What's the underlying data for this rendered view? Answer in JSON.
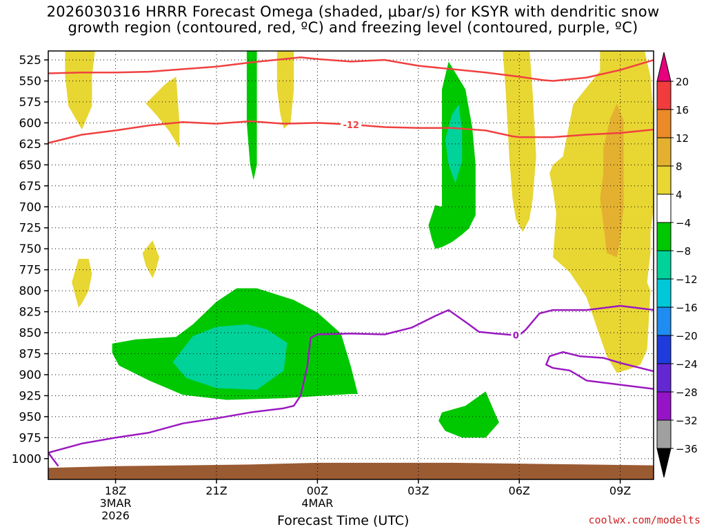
{
  "title": {
    "line1": "2026030316 HRRR Forecast Omega (shaded, μbar/s) for KSYR with dendritic snow",
    "line2": "growth region (contoured, red, ºC) and freezing level (contoured, purple, ºC)"
  },
  "credit": "coolwx.com/modelts",
  "chart_data": {
    "type": "time-height cross section",
    "xlabel": "Forecast Time (UTC)",
    "ylabel": "",
    "y_scale": "pressure (hPa), decreasing upward",
    "ylim": [
      1012,
      510
    ],
    "xlim": [
      16,
      34
    ],
    "x_units": "hours since 2026-03-03 00Z",
    "x_ticks": [
      {
        "x": 18,
        "lines": [
          "18Z",
          "3MAR",
          "2026"
        ]
      },
      {
        "x": 21,
        "lines": [
          "21Z"
        ]
      },
      {
        "x": 24,
        "lines": [
          "00Z",
          "4MAR"
        ]
      },
      {
        "x": 27,
        "lines": [
          "03Z"
        ]
      },
      {
        "x": 30,
        "lines": [
          "06Z"
        ]
      },
      {
        "x": 33,
        "lines": [
          "09Z"
        ]
      }
    ],
    "y_ticks": [
      525,
      550,
      575,
      600,
      625,
      650,
      675,
      700,
      725,
      750,
      775,
      800,
      825,
      850,
      875,
      900,
      925,
      950,
      975,
      1000
    ],
    "grid": true,
    "colorbar": {
      "label_values": [
        20,
        16,
        12,
        8,
        4,
        -4,
        -8,
        -12,
        -16,
        -20,
        -24,
        -28,
        -32,
        -36
      ],
      "bins": [
        {
          "from": 20,
          "to": 16,
          "color": "#f03c3c"
        },
        {
          "from": 16,
          "to": 12,
          "color": "#ec8a28"
        },
        {
          "from": 12,
          "to": 8,
          "color": "#e4b030"
        },
        {
          "from": 8,
          "to": 4,
          "color": "#e8d633"
        },
        {
          "from": 4,
          "to": -4,
          "color": "#ffffff"
        },
        {
          "from": -4,
          "to": -8,
          "color": "#00c800"
        },
        {
          "from": -8,
          "to": -12,
          "color": "#00d29a"
        },
        {
          "from": -12,
          "to": -16,
          "color": "#00c8d8"
        },
        {
          "from": -16,
          "to": -20,
          "color": "#1e8cf0"
        },
        {
          "from": -20,
          "to": -24,
          "color": "#1e3cdc"
        },
        {
          "from": -24,
          "to": -28,
          "color": "#6428d2"
        },
        {
          "from": -28,
          "to": -32,
          "color": "#9614c8"
        },
        {
          "from": -32,
          "to": -36,
          "color": "#a0a0a0"
        }
      ],
      "over_color": "#e6007e",
      "under_color": "#000000"
    },
    "shaded_regions": [
      {
        "name": "upward motion -4 to -8",
        "color": "#00c800",
        "polygon": [
          [
            17.9,
            863
          ],
          [
            18.6,
            858
          ],
          [
            19.8,
            855
          ],
          [
            20.3,
            840
          ],
          [
            21.0,
            813
          ],
          [
            21.6,
            797
          ],
          [
            22.2,
            797
          ],
          [
            23.3,
            811
          ],
          [
            24.0,
            826
          ],
          [
            24.7,
            851
          ],
          [
            25.0,
            891
          ],
          [
            25.2,
            923
          ],
          [
            25.0,
            923
          ],
          [
            23.0,
            928
          ],
          [
            21.3,
            930
          ],
          [
            20.0,
            924
          ],
          [
            19.0,
            907
          ],
          [
            18.1,
            889
          ],
          [
            17.9,
            874
          ]
        ]
      },
      {
        "name": "upward motion -8 to -12",
        "color": "#00d29a",
        "polygon": [
          [
            19.7,
            885
          ],
          [
            20.3,
            854
          ],
          [
            21.0,
            843
          ],
          [
            21.9,
            840
          ],
          [
            22.5,
            846
          ],
          [
            23.1,
            862
          ],
          [
            23.0,
            895
          ],
          [
            22.2,
            918
          ],
          [
            21.0,
            916
          ],
          [
            20.1,
            904
          ]
        ]
      },
      {
        "name": "upward motion -4 to -8",
        "color": "#00c800",
        "polygon": [
          [
            21.9,
            510
          ],
          [
            22.2,
            510
          ],
          [
            22.2,
            650
          ],
          [
            22.1,
            668
          ],
          [
            22.0,
            650
          ],
          [
            21.9,
            600
          ]
        ]
      },
      {
        "name": "upward motion -4 to -8",
        "color": "#00c800",
        "polygon": [
          [
            27.7,
            560
          ],
          [
            27.9,
            527
          ],
          [
            28.4,
            560
          ],
          [
            28.6,
            605
          ],
          [
            28.7,
            650
          ],
          [
            28.7,
            685
          ],
          [
            28.7,
            710
          ],
          [
            28.5,
            726
          ],
          [
            28.3,
            733
          ],
          [
            28.0,
            742
          ],
          [
            27.7,
            748
          ],
          [
            27.5,
            750
          ],
          [
            27.4,
            738
          ],
          [
            27.3,
            722
          ],
          [
            27.5,
            698
          ],
          [
            27.7,
            700
          ],
          [
            27.7,
            660
          ],
          [
            27.7,
            615
          ]
        ]
      },
      {
        "name": "upward motion -8 to -12",
        "color": "#00d29a",
        "polygon": [
          [
            27.8,
            620
          ],
          [
            28.0,
            590
          ],
          [
            28.2,
            578
          ],
          [
            28.3,
            610
          ],
          [
            28.3,
            645
          ],
          [
            28.1,
            672
          ],
          [
            27.9,
            650
          ]
        ]
      },
      {
        "name": "upward motion -4 to -8",
        "color": "#00c800",
        "polygon": [
          [
            27.7,
            945
          ],
          [
            28.4,
            937
          ],
          [
            29.0,
            920
          ],
          [
            29.3,
            948
          ],
          [
            29.4,
            957
          ],
          [
            29.0,
            975
          ],
          [
            28.3,
            975
          ],
          [
            27.8,
            967
          ],
          [
            27.6,
            955
          ]
        ]
      },
      {
        "name": "downward motion 4 to 8",
        "color": "#e8d633",
        "polygon": [
          [
            16.5,
            510
          ],
          [
            17.4,
            510
          ],
          [
            17.3,
            545
          ],
          [
            17.3,
            580
          ],
          [
            17.0,
            608
          ],
          [
            16.6,
            580
          ],
          [
            16.5,
            545
          ]
        ]
      },
      {
        "name": "downward motion 4 to 8",
        "color": "#e8d633",
        "polygon": [
          [
            18.9,
            577
          ],
          [
            19.5,
            553
          ],
          [
            19.8,
            545
          ],
          [
            19.9,
            600
          ],
          [
            19.9,
            630
          ],
          [
            19.6,
            610
          ],
          [
            19.2,
            590
          ]
        ]
      },
      {
        "name": "downward motion 4 to 8",
        "color": "#e8d633",
        "polygon": [
          [
            22.8,
            510
          ],
          [
            23.3,
            510
          ],
          [
            23.3,
            560
          ],
          [
            23.2,
            600
          ],
          [
            23.0,
            607
          ],
          [
            22.9,
            590
          ],
          [
            22.8,
            560
          ]
        ]
      },
      {
        "name": "downward motion 4 to 8",
        "color": "#e8d633",
        "polygon": [
          [
            16.7,
            790
          ],
          [
            16.9,
            762
          ],
          [
            17.2,
            762
          ],
          [
            17.3,
            780
          ],
          [
            17.2,
            800
          ],
          [
            17.0,
            815
          ],
          [
            16.9,
            820
          ],
          [
            16.8,
            805
          ]
        ]
      },
      {
        "name": "downward motion 4 to 8",
        "color": "#e8d633",
        "polygon": [
          [
            18.8,
            755
          ],
          [
            19.1,
            740
          ],
          [
            19.3,
            760
          ],
          [
            19.2,
            775
          ],
          [
            19.1,
            785
          ],
          [
            18.9,
            770
          ]
        ]
      },
      {
        "name": "downward motion 4 to 8",
        "color": "#e8d633",
        "polygon": [
          [
            29.5,
            510
          ],
          [
            30.3,
            510
          ],
          [
            30.4,
            565
          ],
          [
            30.5,
            640
          ],
          [
            30.4,
            690
          ],
          [
            30.3,
            715
          ],
          [
            30.1,
            730
          ],
          [
            29.9,
            715
          ],
          [
            29.8,
            690
          ],
          [
            29.7,
            640
          ],
          [
            29.6,
            565
          ]
        ]
      },
      {
        "name": "downward motion 4 to 8",
        "color": "#e8d633",
        "polygon": [
          [
            31.3,
            640
          ],
          [
            31.6,
            578
          ],
          [
            32.4,
            538
          ],
          [
            32.4,
            510
          ],
          [
            33.7,
            510
          ],
          [
            33.9,
            545
          ],
          [
            34.0,
            600
          ],
          [
            34.0,
            700
          ],
          [
            33.9,
            730
          ],
          [
            33.9,
            755
          ],
          [
            33.8,
            790
          ],
          [
            33.9,
            800
          ],
          [
            33.8,
            870
          ],
          [
            33.6,
            888
          ],
          [
            33.3,
            893
          ],
          [
            32.9,
            898
          ],
          [
            32.6,
            878
          ],
          [
            32.0,
            808
          ],
          [
            31.5,
            778
          ],
          [
            31.0,
            760
          ],
          [
            31.1,
            708
          ],
          [
            31.0,
            680
          ],
          [
            30.9,
            660
          ],
          [
            31.0,
            650
          ]
        ]
      },
      {
        "name": "downward motion 8 to 12",
        "color": "#e4b030",
        "polygon": [
          [
            32.7,
            595
          ],
          [
            32.9,
            577
          ],
          [
            33.1,
            597
          ],
          [
            33.1,
            660
          ],
          [
            33.1,
            700
          ],
          [
            33.0,
            740
          ],
          [
            32.9,
            760
          ],
          [
            32.6,
            755
          ],
          [
            32.5,
            720
          ],
          [
            32.4,
            690
          ],
          [
            32.5,
            660
          ],
          [
            32.5,
            630
          ]
        ]
      }
    ],
    "contours": [
      {
        "name": "dendritic snow growth region upper bound",
        "label": "",
        "color": "#f04040",
        "points": [
          [
            16.0,
            541
          ],
          [
            17.0,
            540
          ],
          [
            18.0,
            540
          ],
          [
            19.0,
            539
          ],
          [
            20.0,
            536
          ],
          [
            21.0,
            533
          ],
          [
            22.0,
            528
          ],
          [
            23.0,
            524
          ],
          [
            23.5,
            522
          ],
          [
            24.0,
            524
          ],
          [
            25.0,
            527
          ],
          [
            26.0,
            525
          ],
          [
            27.0,
            532
          ],
          [
            28.0,
            536
          ],
          [
            29.0,
            540
          ],
          [
            30.0,
            545
          ],
          [
            30.7,
            549
          ],
          [
            31.0,
            550
          ],
          [
            32.0,
            546
          ],
          [
            33.0,
            537
          ],
          [
            34.0,
            525
          ]
        ]
      },
      {
        "name": "dendritic snow growth region lower bound",
        "label": "-12",
        "label_x": 25.0,
        "color": "#f04040",
        "points": [
          [
            16.0,
            624
          ],
          [
            17.0,
            614
          ],
          [
            18.0,
            609
          ],
          [
            19.0,
            603
          ],
          [
            20.0,
            599
          ],
          [
            21.0,
            601
          ],
          [
            22.0,
            598
          ],
          [
            23.0,
            601
          ],
          [
            24.0,
            600
          ],
          [
            25.0,
            602
          ],
          [
            26.0,
            605
          ],
          [
            27.0,
            606
          ],
          [
            28.0,
            606
          ],
          [
            29.0,
            609
          ],
          [
            29.8,
            616
          ],
          [
            30.0,
            617
          ],
          [
            31.0,
            617
          ],
          [
            32.0,
            614
          ],
          [
            33.0,
            612
          ],
          [
            34.0,
            608
          ]
        ]
      },
      {
        "name": "freezing level",
        "label": "0",
        "label_x": 29.9,
        "color": "#9b18c0",
        "points": [
          [
            16.3,
            1009
          ],
          [
            16.0,
            993
          ],
          [
            17.0,
            982
          ],
          [
            18.0,
            975
          ],
          [
            19.0,
            969
          ],
          [
            20.0,
            958
          ],
          [
            21.0,
            952
          ],
          [
            22.0,
            945
          ],
          [
            23.0,
            940
          ],
          [
            23.3,
            937
          ],
          [
            23.5,
            925
          ],
          [
            23.7,
            890
          ],
          [
            23.8,
            856
          ],
          [
            24.0,
            852
          ],
          [
            25.0,
            851
          ],
          [
            26.0,
            852
          ],
          [
            26.8,
            844
          ],
          [
            27.5,
            830
          ],
          [
            27.9,
            823
          ],
          [
            28.5,
            840
          ],
          [
            28.8,
            849
          ],
          [
            29.3,
            851
          ],
          [
            29.9,
            853
          ],
          [
            30.0,
            853
          ],
          [
            30.2,
            846
          ],
          [
            30.6,
            827
          ],
          [
            31.0,
            823
          ],
          [
            32.0,
            823
          ],
          [
            33.0,
            818
          ],
          [
            34.0,
            823
          ]
        ]
      },
      {
        "name": "freezing level (secondary)",
        "label": "",
        "color": "#9b18c0",
        "points": [
          [
            34.0,
            917
          ],
          [
            33.0,
            912
          ],
          [
            32.0,
            907
          ],
          [
            31.8,
            902
          ],
          [
            31.5,
            895
          ],
          [
            31.0,
            892
          ],
          [
            30.8,
            888
          ],
          [
            30.9,
            878
          ],
          [
            31.3,
            873
          ],
          [
            31.8,
            878
          ],
          [
            32.5,
            880
          ],
          [
            33.0,
            886
          ],
          [
            34.0,
            896
          ]
        ]
      }
    ],
    "terrain": {
      "color": "#9a5a32",
      "top_hpa": [
        [
          16.0,
          1011
        ],
        [
          18.0,
          1009
        ],
        [
          20.0,
          1008
        ],
        [
          22.0,
          1007
        ],
        [
          24.0,
          1005
        ],
        [
          26.0,
          1005
        ],
        [
          28.0,
          1005
        ],
        [
          30.0,
          1006
        ],
        [
          32.0,
          1007
        ],
        [
          34.0,
          1008
        ]
      ]
    }
  }
}
